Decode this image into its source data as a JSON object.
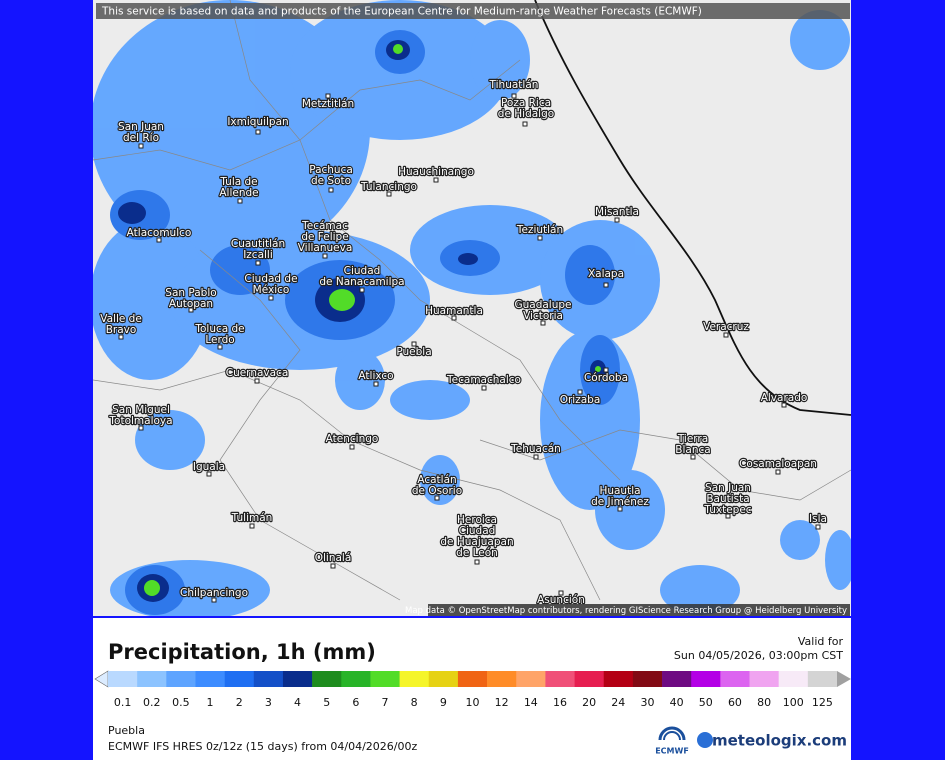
{
  "disclaimer": "This service is based on data and products of the European Centre for Medium-range Weather Forecasts (ECMWF)",
  "attribution": "Map data © OpenStreetMap contributors, rendering GIScience Research Group @ Heidelberg University",
  "cities": [
    [
      "Tihuatlán"
    ],
    [
      "Poza Rica",
      "de Hidalgo"
    ],
    [
      "Metztitlán"
    ],
    [
      "Ixmiquilpan"
    ],
    [
      "San Juan",
      "del Río"
    ],
    [
      "Pachuca",
      "de Soto"
    ],
    [
      "Huauchinango"
    ],
    [
      "Tulancingo"
    ],
    [
      "Tula de",
      "Allende"
    ],
    [
      "Misantla"
    ],
    [
      "Atlacomulco"
    ],
    [
      "Teziutlán"
    ],
    [
      "Tecámac",
      "de Felipe",
      "Villanueva"
    ],
    [
      "Cuautitlán",
      "Izcalli"
    ],
    [
      "Ciudad",
      "de Nanacamilpa"
    ],
    [
      "Xalapa"
    ],
    [
      "Ciudad de",
      "México"
    ],
    [
      "San Pablo",
      "Autopan"
    ],
    [
      "Huamantla"
    ],
    [
      "Guadalupe",
      "Victoria"
    ],
    [
      "Valle de",
      "Bravo"
    ],
    [
      "Toluca de",
      "Lerdo"
    ],
    [
      "Veracruz"
    ],
    [
      "Puebla"
    ],
    [
      "Cuernavaca"
    ],
    [
      "Atlixco"
    ],
    [
      "Tecamachalco"
    ],
    [
      "Córdoba"
    ],
    [
      "Orizaba"
    ],
    [
      "Alvarado"
    ],
    [
      "San Miguel",
      "Totolmaloya"
    ],
    [
      "Atencingo"
    ],
    [
      "Tierra",
      "Blanca"
    ],
    [
      "Tehuacán"
    ],
    [
      "Cosamaloapan"
    ],
    [
      "Iguala"
    ],
    [
      "Acatlán",
      "de Osorio"
    ],
    [
      "Huautla",
      "de Jiménez"
    ],
    [
      "San Juan",
      "Bautista",
      "Tuxtepec"
    ],
    [
      "Tulimán"
    ],
    [
      "Isla"
    ],
    [
      "Heroica",
      "Ciudad",
      "de Huajuapan",
      "de León"
    ],
    [
      "Olinalá"
    ],
    [
      "Chilpancingo"
    ],
    [
      "Asunción"
    ]
  ],
  "title": "Precipitation, 1h (mm)",
  "valid_label": "Valid for",
  "valid_time": "Sun 04/05/2026, 03:00pm CST",
  "legend": {
    "ticks": [
      0.1,
      0.2,
      0.5,
      1,
      2,
      3,
      4,
      5,
      6,
      7,
      8,
      9,
      10,
      12,
      14,
      16,
      20,
      24,
      30,
      40,
      50,
      60,
      80,
      100,
      125
    ],
    "colors": [
      "#b9d9ff",
      "#8cc3ff",
      "#5ea4ff",
      "#3d8cff",
      "#1f6ff2",
      "#1450c8",
      "#0a2d8c",
      "#1e8c1e",
      "#28b428",
      "#52dc28",
      "#f5f52a",
      "#e6d214",
      "#f06414",
      "#ff8c28",
      "#ffa468",
      "#f05078",
      "#e61e50",
      "#b40014",
      "#820a14",
      "#6e0a82",
      "#b400e6",
      "#dc64f0",
      "#f0a4f0",
      "#f7eaf7",
      "#d4d4d4"
    ],
    "below_color": "#dcecff",
    "above_color": "#a0a0a0"
  },
  "region": "Puebla",
  "model": "ECMWF IFS HRES 0z/12z (15 days) from 04/04/2026/00z",
  "logo_ecmwf": "ECMWF",
  "logo_site": "meteologix.com"
}
